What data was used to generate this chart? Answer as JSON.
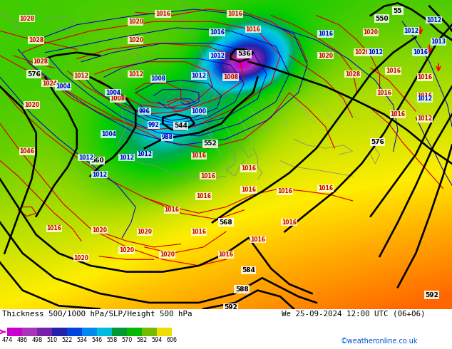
{
  "title_left": "Thickness 500/1000 hPa/SLP/Height 500 hPa",
  "title_right": "We 25-09-2024 12:00 UTC (06+06)",
  "watermark": "©weatheronline.co.uk",
  "colorbar_values": [
    474,
    486,
    498,
    510,
    522,
    534,
    546,
    558,
    570,
    582,
    594,
    606
  ],
  "colorbar_colors": [
    "#cc00cc",
    "#bb44cc",
    "#7722bb",
    "#2222aa",
    "#0044dd",
    "#0088ee",
    "#00bbdd",
    "#009933",
    "#00bb00",
    "#77bb00",
    "#eedd00",
    "#ff9900",
    "#ff5500"
  ],
  "bg_color": "#ffffff",
  "fig_width": 6.34,
  "fig_height": 4.9,
  "dpi": 100
}
